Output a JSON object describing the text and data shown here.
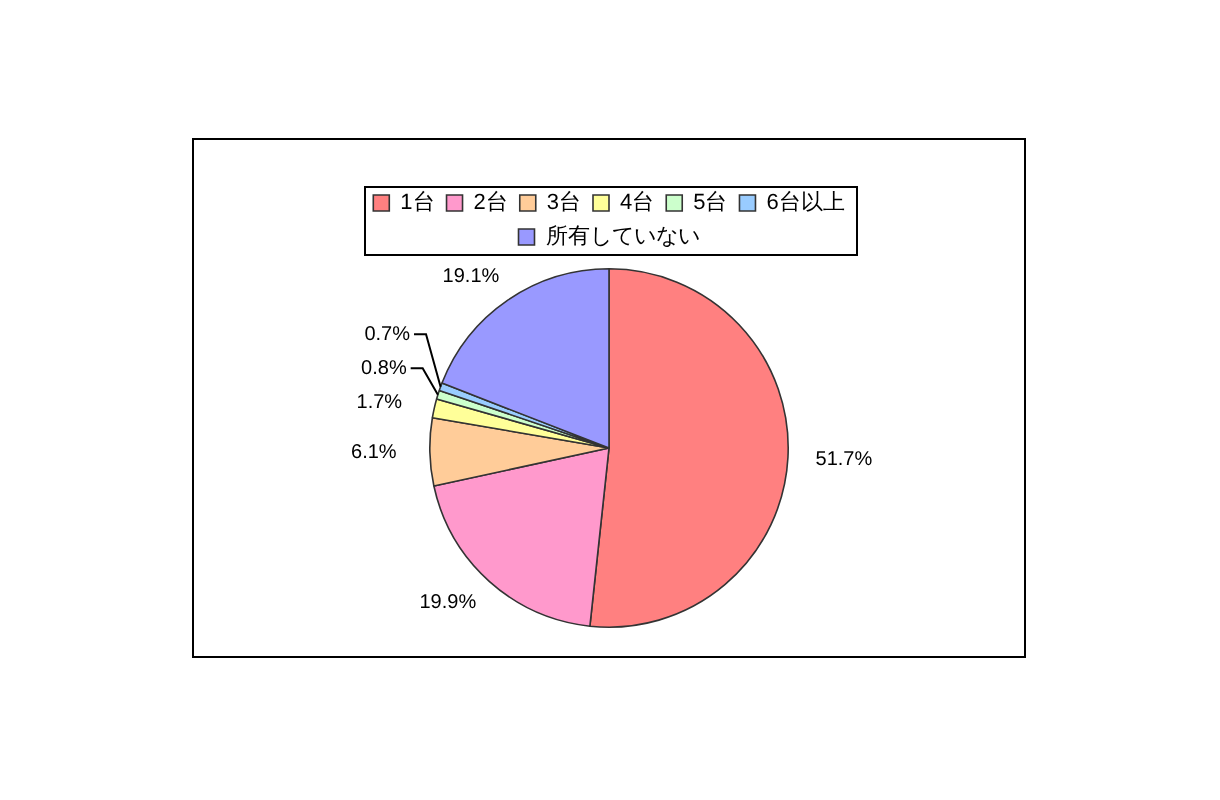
{
  "chart_data": {
    "type": "pie",
    "categories": [
      "1台",
      "2台",
      "3台",
      "4台",
      "5台",
      "6台以上",
      "所有していない"
    ],
    "values": [
      51.7,
      19.9,
      6.1,
      1.7,
      0.8,
      0.7,
      19.1
    ],
    "value_labels": [
      "51.7%",
      "19.9%",
      "6.1%",
      "1.7%",
      "0.8%",
      "0.7%",
      "19.1%"
    ],
    "colors": [
      "#ff8080",
      "#ff99cc",
      "#ffcc99",
      "#ffff99",
      "#ccffcc",
      "#99ccff",
      "#9999ff"
    ],
    "legend": "top"
  }
}
